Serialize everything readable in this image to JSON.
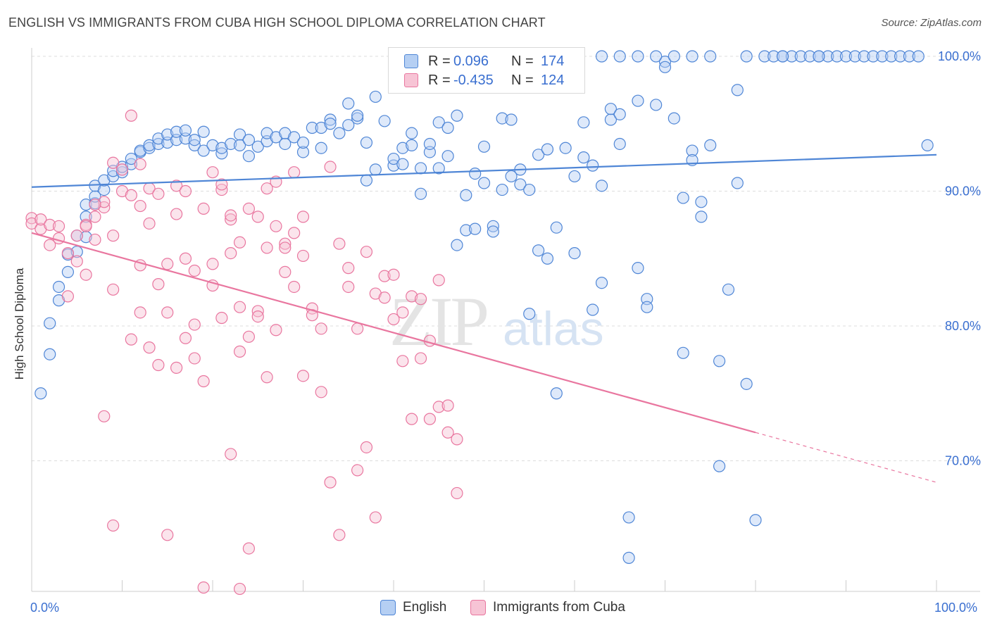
{
  "title": "ENGLISH VS IMMIGRANTS FROM CUBA HIGH SCHOOL DIPLOMA CORRELATION CHART",
  "source": "Source: ZipAtlas.com",
  "watermark": {
    "zip": "ZIP",
    "atlas": "atlas"
  },
  "legend_top": [
    {
      "swatch_color": "#a8c8f4",
      "r_label": "R =",
      "r_value": "0.096",
      "n_label": "N =",
      "n_value": "174"
    },
    {
      "swatch_color": "#f7b8cb",
      "r_label": "R =",
      "r_value": "-0.435",
      "n_label": "N =",
      "n_value": "124"
    }
  ],
  "chart_data": {
    "type": "scatter",
    "title": "ENGLISH VS IMMIGRANTS FROM CUBA HIGH SCHOOL DIPLOMA CORRELATION CHART",
    "xlabel": "",
    "ylabel": "High School Diploma",
    "xlim": [
      0,
      100
    ],
    "ylim": [
      60,
      102
    ],
    "x_tick_labels": {
      "left": "0.0%",
      "right": "100.0%"
    },
    "y_ticks": [
      {
        "value": 100,
        "label": "100.0%"
      },
      {
        "value": 90,
        "label": "90.0%"
      },
      {
        "value": 80,
        "label": "80.0%"
      },
      {
        "value": 70,
        "label": "70.0%"
      }
    ],
    "grid": "horizontal dashed",
    "legend_position": "bottom",
    "colors": {
      "english": "#4f86d6",
      "english_fill": "#b5cff3",
      "cuba": "#e9769f",
      "cuba_fill": "#f7c4d5"
    },
    "series": [
      {
        "name": "English",
        "trend": {
          "x0": 0,
          "y0": 90.3,
          "x1": 100,
          "y1": 92.7
        },
        "points": [
          [
            1,
            75
          ],
          [
            2,
            80.2
          ],
          [
            2,
            77.9
          ],
          [
            3,
            81.9
          ],
          [
            3,
            82.9
          ],
          [
            4,
            84
          ],
          [
            4,
            85.3
          ],
          [
            5,
            85.5
          ],
          [
            5,
            86.7
          ],
          [
            6,
            86.6
          ],
          [
            6,
            88.1
          ],
          [
            6,
            89
          ],
          [
            7,
            89.1
          ],
          [
            7,
            89.6
          ],
          [
            7,
            90.4
          ],
          [
            8,
            90.1
          ],
          [
            8,
            90.8
          ],
          [
            9,
            91.1
          ],
          [
            9,
            91.5
          ],
          [
            10,
            91.4
          ],
          [
            10,
            91.8
          ],
          [
            11,
            92
          ],
          [
            11,
            92.4
          ],
          [
            12,
            92.9
          ],
          [
            12,
            93
          ],
          [
            13,
            93.2
          ],
          [
            13,
            93.4
          ],
          [
            14,
            93.5
          ],
          [
            14,
            93.9
          ],
          [
            15,
            93.6
          ],
          [
            15,
            94.2
          ],
          [
            16,
            93.8
          ],
          [
            16,
            94.4
          ],
          [
            17,
            93.9
          ],
          [
            17,
            94.5
          ],
          [
            18,
            93.4
          ],
          [
            18,
            93.8
          ],
          [
            19,
            94.4
          ],
          [
            19,
            93
          ],
          [
            20,
            93.4
          ],
          [
            21,
            92.8
          ],
          [
            21,
            93.2
          ],
          [
            22,
            93.5
          ],
          [
            23,
            94.2
          ],
          [
            23,
            93.4
          ],
          [
            24,
            93.8
          ],
          [
            24,
            92.6
          ],
          [
            25,
            93.3
          ],
          [
            26,
            93.7
          ],
          [
            26,
            94.3
          ],
          [
            27,
            94
          ],
          [
            28,
            93.5
          ],
          [
            28,
            94.3
          ],
          [
            29,
            94
          ],
          [
            30,
            92.9
          ],
          [
            30,
            93.6
          ],
          [
            31,
            94.7
          ],
          [
            32,
            93.2
          ],
          [
            32,
            94.7
          ],
          [
            33,
            95.3
          ],
          [
            33,
            95
          ],
          [
            34,
            94.3
          ],
          [
            35,
            96.5
          ],
          [
            35,
            94.9
          ],
          [
            36,
            95.4
          ],
          [
            36,
            95.6
          ],
          [
            37,
            93.6
          ],
          [
            37,
            90.8
          ],
          [
            38,
            91.6
          ],
          [
            38,
            97
          ],
          [
            39,
            95.2
          ],
          [
            40,
            91.9
          ],
          [
            40,
            92.4
          ],
          [
            41,
            92
          ],
          [
            41,
            93.2
          ],
          [
            42,
            93.4
          ],
          [
            42,
            94.3
          ],
          [
            43,
            89.8
          ],
          [
            43,
            91.7
          ],
          [
            44,
            92.9
          ],
          [
            44,
            93.5
          ],
          [
            45,
            91.7
          ],
          [
            45,
            95.1
          ],
          [
            46,
            94.7
          ],
          [
            46,
            92.6
          ],
          [
            47,
            95.6
          ],
          [
            47,
            86
          ],
          [
            48,
            89.7
          ],
          [
            48,
            87.1
          ],
          [
            49,
            91.3
          ],
          [
            49,
            87.2
          ],
          [
            50,
            90.6
          ],
          [
            50,
            93.3
          ],
          [
            51,
            87.4
          ],
          [
            51,
            87
          ],
          [
            52,
            90.1
          ],
          [
            52,
            95.4
          ],
          [
            53,
            95.3
          ],
          [
            53,
            91.1
          ],
          [
            54,
            90.5
          ],
          [
            54,
            91.6
          ],
          [
            55,
            90.1
          ],
          [
            55,
            80.9
          ],
          [
            56,
            85.6
          ],
          [
            56,
            92.7
          ],
          [
            57,
            93.1
          ],
          [
            57,
            85
          ],
          [
            58,
            87.3
          ],
          [
            58,
            75
          ],
          [
            59,
            93.2
          ],
          [
            60,
            85.4
          ],
          [
            60,
            91.1
          ],
          [
            61,
            92.5
          ],
          [
            61,
            95.1
          ],
          [
            62,
            91.9
          ],
          [
            62,
            81.2
          ],
          [
            63,
            90.4
          ],
          [
            63,
            83.2
          ],
          [
            64,
            95.3
          ],
          [
            64,
            96.1
          ],
          [
            65,
            95.7
          ],
          [
            65,
            93.5
          ],
          [
            66,
            62.8
          ],
          [
            66,
            65.8
          ],
          [
            67,
            84.3
          ],
          [
            67,
            96.7
          ],
          [
            68,
            82
          ],
          [
            68,
            81.4
          ],
          [
            69,
            96.4
          ],
          [
            70,
            99.6
          ],
          [
            70,
            99.2
          ],
          [
            71,
            95.4
          ],
          [
            72,
            89.5
          ],
          [
            72,
            78
          ],
          [
            73,
            93
          ],
          [
            73,
            92.3
          ],
          [
            74,
            88.1
          ],
          [
            74,
            89.2
          ],
          [
            75,
            93.4
          ],
          [
            76,
            77.4
          ],
          [
            76,
            69.6
          ],
          [
            77,
            82.7
          ],
          [
            78,
            97.5
          ],
          [
            78,
            90.6
          ],
          [
            79,
            75.7
          ],
          [
            80,
            65.6
          ],
          [
            81,
            100
          ],
          [
            82,
            100
          ],
          [
            83,
            100
          ],
          [
            84,
            100
          ],
          [
            85,
            100
          ],
          [
            86,
            100
          ],
          [
            87,
            100
          ],
          [
            88,
            100
          ],
          [
            89,
            100
          ],
          [
            90,
            100
          ],
          [
            91,
            100
          ],
          [
            92,
            100
          ],
          [
            93,
            100
          ],
          [
            94,
            100
          ],
          [
            95,
            100
          ],
          [
            96,
            100
          ],
          [
            97,
            100
          ],
          [
            98,
            100
          ],
          [
            99,
            93.4
          ],
          [
            63,
            100
          ],
          [
            65,
            100
          ],
          [
            67,
            100
          ],
          [
            69,
            100
          ],
          [
            71,
            100
          ],
          [
            73,
            100
          ],
          [
            75,
            100
          ],
          [
            79,
            100
          ],
          [
            83,
            100
          ],
          [
            87,
            100
          ]
        ]
      },
      {
        "name": "Immigrants from Cuba",
        "trend": {
          "x0": 0,
          "y0": 86.9,
          "x1": 80,
          "y1": 72.1,
          "dash_to": {
            "x": 100,
            "y": 68.4
          }
        },
        "points": [
          [
            0,
            88
          ],
          [
            0,
            87.6
          ],
          [
            1,
            87.2
          ],
          [
            1,
            87.9
          ],
          [
            2,
            86
          ],
          [
            2,
            87.5
          ],
          [
            3,
            86.5
          ],
          [
            3,
            87.4
          ],
          [
            4,
            82.2
          ],
          [
            4,
            85.4
          ],
          [
            5,
            84.8
          ],
          [
            5,
            86.7
          ],
          [
            6,
            83.8
          ],
          [
            6,
            87.5
          ],
          [
            7,
            86.4
          ],
          [
            7,
            88.1
          ],
          [
            8,
            88.8
          ],
          [
            8,
            89.2
          ],
          [
            9,
            86.7
          ],
          [
            9,
            82.7
          ],
          [
            10,
            91.6
          ],
          [
            10,
            90
          ],
          [
            11,
            89.7
          ],
          [
            11,
            79
          ],
          [
            12,
            84.5
          ],
          [
            12,
            81
          ],
          [
            13,
            87.6
          ],
          [
            13,
            78.4
          ],
          [
            14,
            83.1
          ],
          [
            14,
            77.1
          ],
          [
            15,
            81
          ],
          [
            15,
            84.6
          ],
          [
            16,
            88.3
          ],
          [
            16,
            76.9
          ],
          [
            17,
            85
          ],
          [
            17,
            79.1
          ],
          [
            18,
            84.1
          ],
          [
            18,
            77.6
          ],
          [
            19,
            88.7
          ],
          [
            19,
            75.9
          ],
          [
            20,
            84.6
          ],
          [
            20,
            91.4
          ],
          [
            21,
            90.1
          ],
          [
            21,
            80.6
          ],
          [
            22,
            85.4
          ],
          [
            22,
            87.9
          ],
          [
            23,
            81.4
          ],
          [
            23,
            78.1
          ],
          [
            24,
            88.7
          ],
          [
            24,
            79.2
          ],
          [
            25,
            81.1
          ],
          [
            25,
            80.7
          ],
          [
            26,
            85.8
          ],
          [
            26,
            76.2
          ],
          [
            27,
            90.7
          ],
          [
            27,
            79.7
          ],
          [
            28,
            86.1
          ],
          [
            28,
            84
          ],
          [
            29,
            82.9
          ],
          [
            29,
            91.4
          ],
          [
            30,
            76.3
          ],
          [
            30,
            88.1
          ],
          [
            31,
            81.3
          ],
          [
            31,
            80.8
          ],
          [
            32,
            79.8
          ],
          [
            32,
            75.1
          ],
          [
            33,
            91.8
          ],
          [
            33,
            68.4
          ],
          [
            34,
            86.1
          ],
          [
            34,
            64.5
          ],
          [
            35,
            84.3
          ],
          [
            35,
            82.9
          ],
          [
            36,
            79.8
          ],
          [
            36,
            69.3
          ],
          [
            37,
            71
          ],
          [
            37,
            85.5
          ],
          [
            38,
            82.4
          ],
          [
            38,
            65.8
          ],
          [
            39,
            83.7
          ],
          [
            39,
            82.1
          ],
          [
            40,
            83.8
          ],
          [
            40,
            80.5
          ],
          [
            41,
            81
          ],
          [
            41,
            77.4
          ],
          [
            42,
            82.2
          ],
          [
            42,
            73.1
          ],
          [
            43,
            82
          ],
          [
            43,
            77.6
          ],
          [
            44,
            73.1
          ],
          [
            44,
            78.9
          ],
          [
            45,
            83.4
          ],
          [
            45,
            74
          ],
          [
            46,
            74.1
          ],
          [
            46,
            72.1
          ],
          [
            47,
            71.6
          ],
          [
            47,
            67.6
          ],
          [
            9,
            92.1
          ],
          [
            11,
            95.6
          ],
          [
            12,
            92
          ],
          [
            18,
            80.1
          ],
          [
            19,
            60.6
          ],
          [
            20,
            83
          ],
          [
            22,
            70.5
          ],
          [
            24,
            63.5
          ],
          [
            8,
            73.3
          ],
          [
            9,
            65.2
          ],
          [
            15,
            64.5
          ],
          [
            23,
            60.5
          ],
          [
            6,
            87.4
          ],
          [
            7,
            89
          ],
          [
            12,
            88.9
          ],
          [
            13,
            90.2
          ],
          [
            14,
            89.8
          ],
          [
            16,
            90.4
          ],
          [
            17,
            90
          ],
          [
            21,
            90.5
          ],
          [
            22,
            88.2
          ],
          [
            23,
            86.2
          ],
          [
            25,
            88.1
          ],
          [
            26,
            90.2
          ],
          [
            27,
            87.4
          ],
          [
            28,
            85.8
          ],
          [
            29,
            86.9
          ],
          [
            30,
            85.2
          ]
        ]
      }
    ]
  },
  "legend_bottom": [
    {
      "label": "English",
      "swatch_color": "#b5cff3"
    },
    {
      "label": "Immigrants from Cuba",
      "swatch_color": "#f7c4d5"
    }
  ]
}
